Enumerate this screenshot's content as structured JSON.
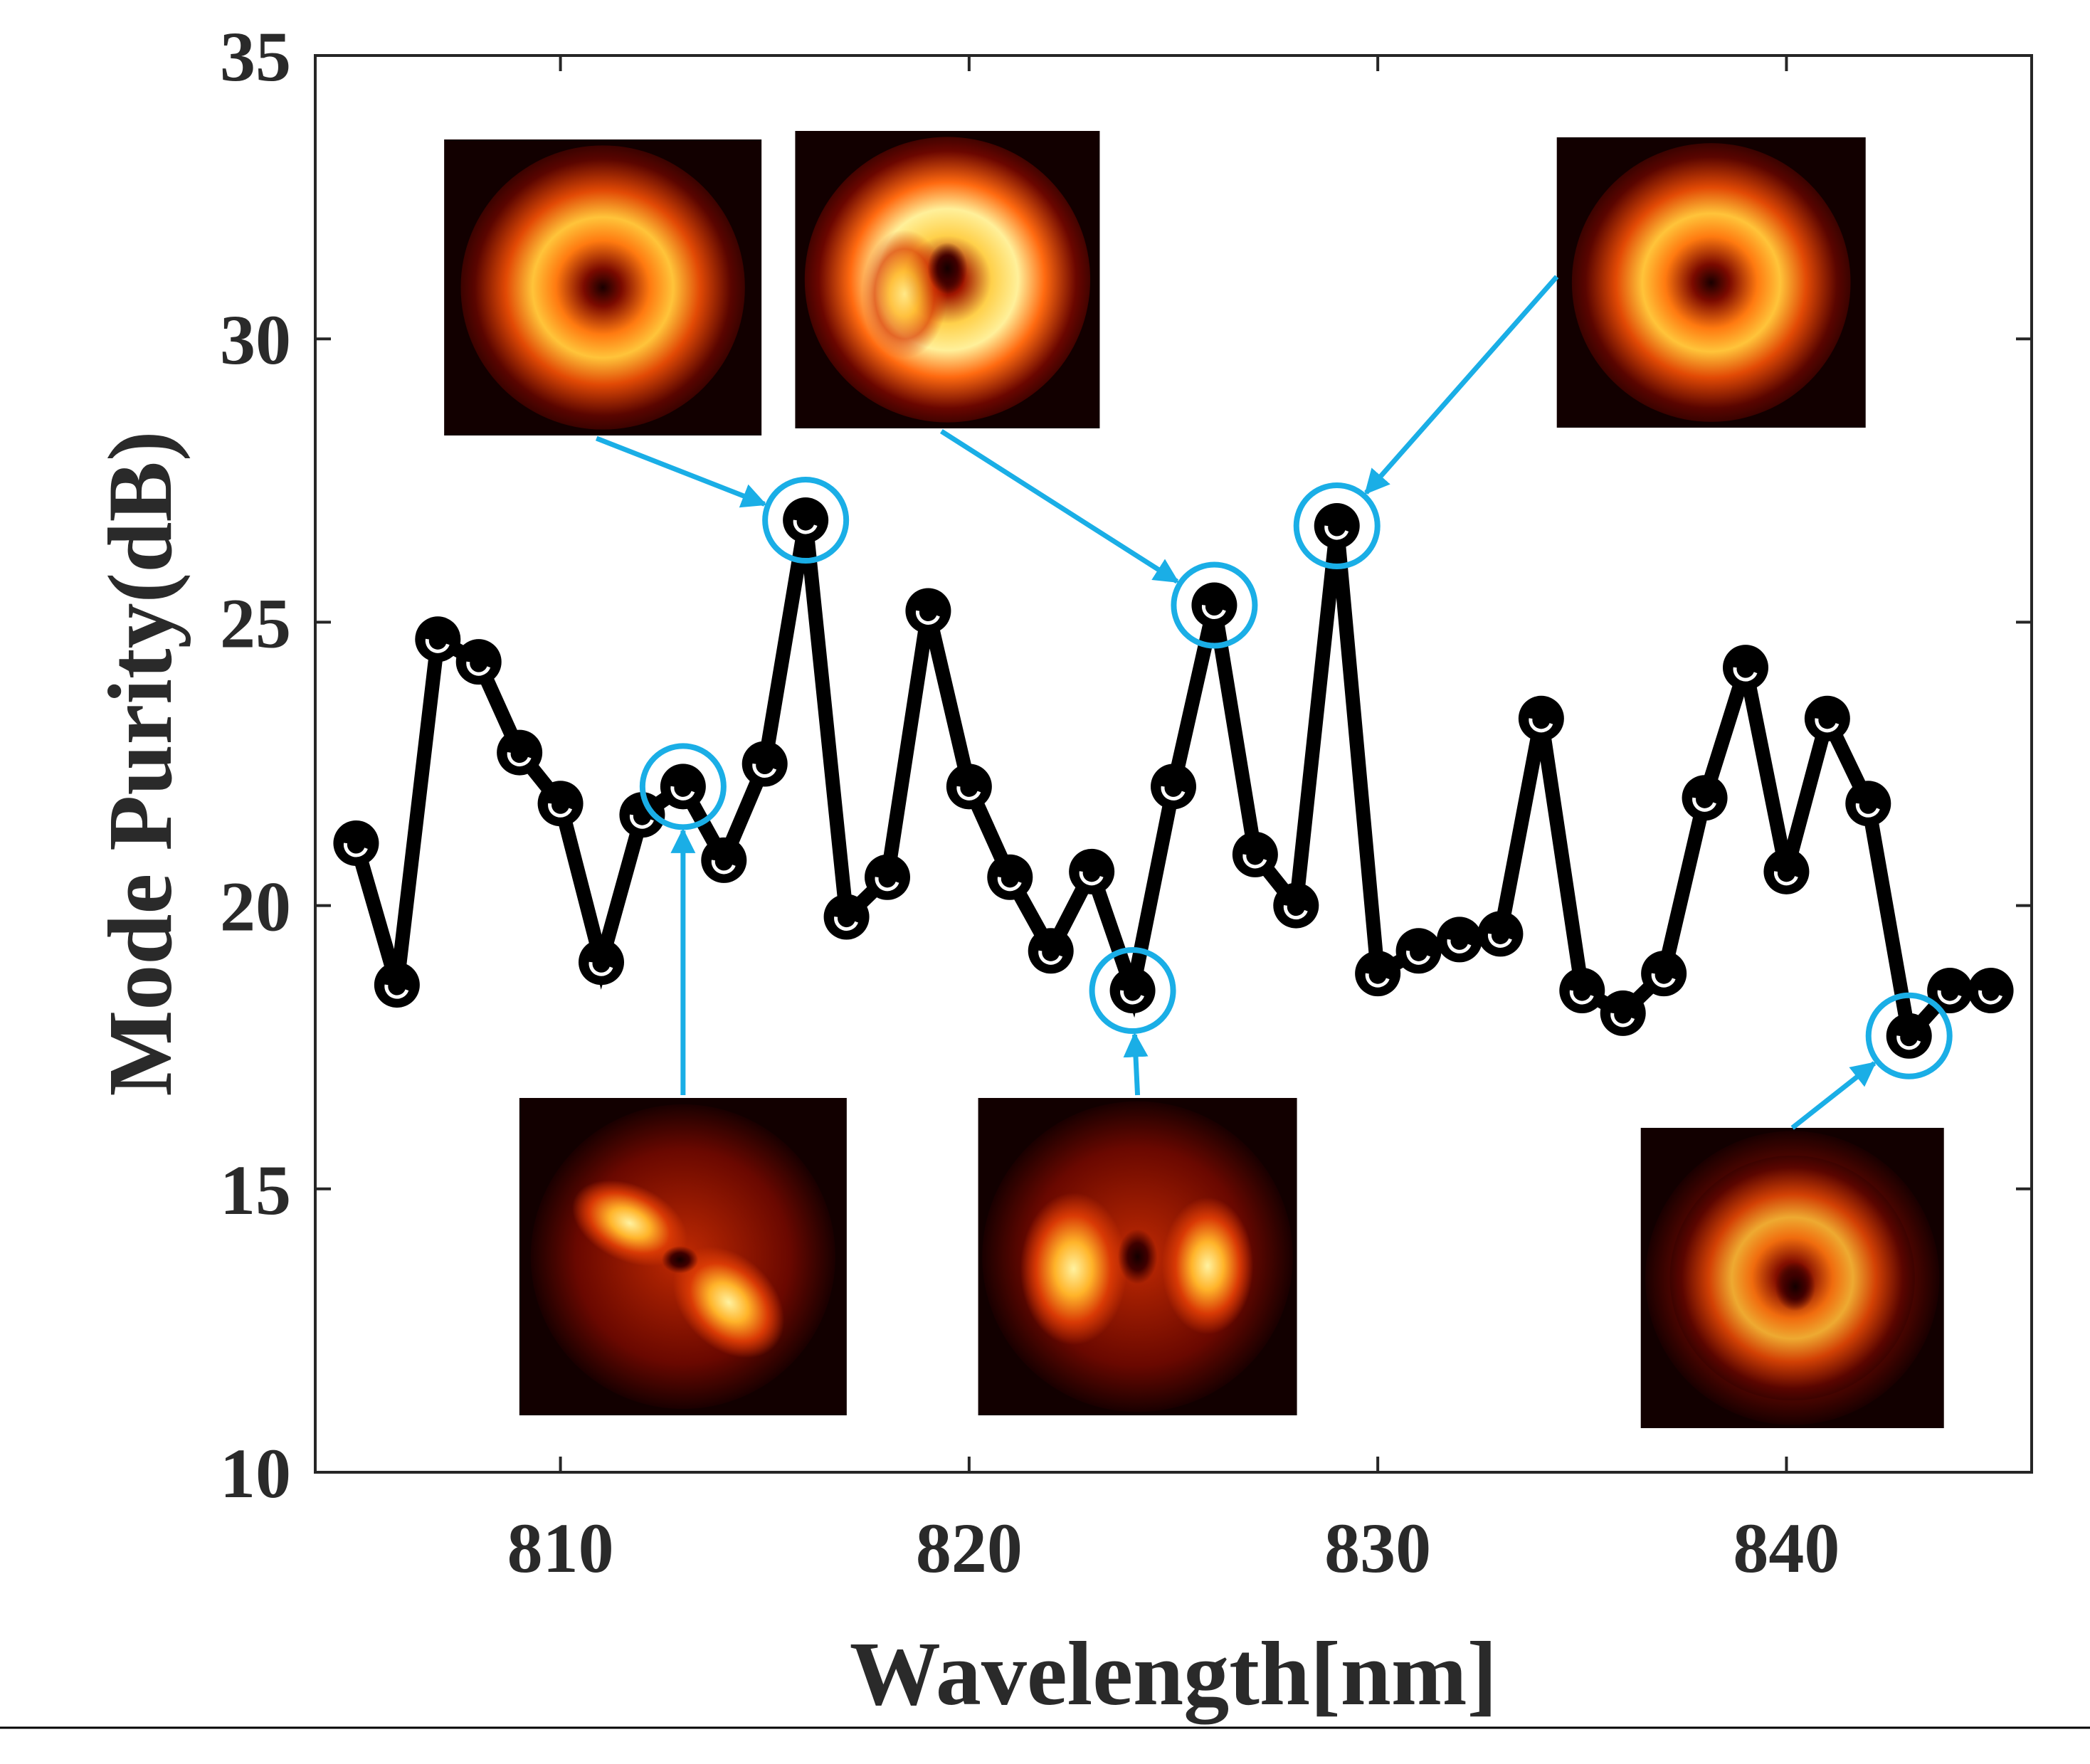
{
  "chart_data": {
    "type": "line",
    "title": "",
    "xlabel": "Wavelength[nm]",
    "ylabel": "Mode Purity(dB)",
    "xlim": [
      804,
      846
    ],
    "ylim": [
      10,
      35
    ],
    "grid": false,
    "xticks": [
      810,
      820,
      830,
      840
    ],
    "yticks": [
      10,
      15,
      20,
      25,
      30,
      35
    ],
    "xtick_labels": [
      "810",
      "820",
      "830",
      "840"
    ],
    "ytick_labels": [
      "10",
      "15",
      "20",
      "25",
      "30",
      "35"
    ],
    "series": [
      {
        "name": "Mode Purity",
        "color": "#000000",
        "marker": "circle",
        "x": [
          805,
          806,
          807,
          808,
          809,
          810,
          811,
          812,
          813,
          814,
          815,
          816,
          817,
          818,
          819,
          820,
          821,
          822,
          823,
          824,
          825,
          826,
          827,
          828,
          829,
          830,
          831,
          832,
          833,
          834,
          835,
          836,
          837,
          838,
          839,
          840,
          841,
          842,
          843,
          844,
          845
        ],
        "y": [
          21.1,
          18.6,
          24.7,
          24.3,
          22.7,
          21.8,
          19.0,
          21.6,
          22.1,
          20.8,
          22.5,
          26.8,
          19.8,
          20.5,
          25.2,
          22.1,
          20.5,
          19.2,
          20.6,
          18.5,
          22.1,
          25.3,
          20.9,
          20.0,
          26.7,
          18.8,
          19.2,
          19.4,
          19.5,
          23.3,
          18.5,
          18.1,
          18.8,
          21.9,
          24.2,
          20.6,
          23.3,
          21.8,
          17.7,
          18.5,
          18.5
        ]
      }
    ],
    "highlight_color": "#1aaee6",
    "highlights": [
      {
        "x": 813,
        "y": 22.1,
        "inset_position": "below",
        "pattern": "two-lobe-diagonal"
      },
      {
        "x": 816,
        "y": 26.8,
        "inset_position": "above",
        "pattern": "ring"
      },
      {
        "x": 824,
        "y": 18.5,
        "inset_position": "below",
        "pattern": "two-lobe-horizontal"
      },
      {
        "x": 826,
        "y": 25.3,
        "inset_position": "above",
        "pattern": "ring-asymmetric"
      },
      {
        "x": 829,
        "y": 26.7,
        "inset_position": "above",
        "pattern": "ring"
      },
      {
        "x": 843,
        "y": 17.7,
        "inset_position": "below",
        "pattern": "diffuse-ring"
      }
    ]
  }
}
